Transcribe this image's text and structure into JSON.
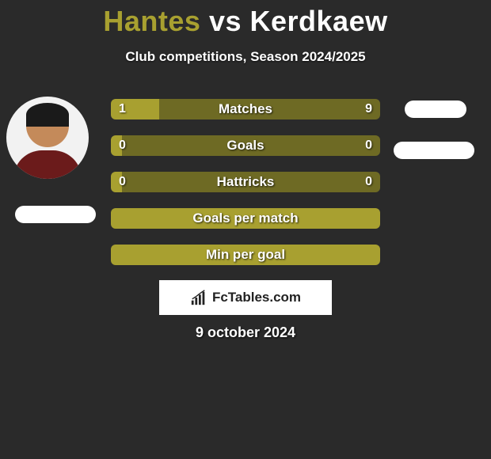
{
  "header": {
    "player1": "Hantes",
    "vs": "vs",
    "player2": "Kerdkaew",
    "p1_color": "#a8a030",
    "vs_color": "#ffffff",
    "p2_color": "#ffffff"
  },
  "subtitle": "Club competitions, Season 2024/2025",
  "colors": {
    "background": "#2a2a2a",
    "left_seg": "#a8a030",
    "right_seg": "#6e6a24",
    "full_bar": "#a8a030"
  },
  "bars": [
    {
      "label": "Matches",
      "left_val": "1",
      "right_val": "9",
      "left_pct": 18,
      "right_pct": 82,
      "split": true
    },
    {
      "label": "Goals",
      "left_val": "0",
      "right_val": "0",
      "left_pct": 4,
      "right_pct": 96,
      "split": true
    },
    {
      "label": "Hattricks",
      "left_val": "0",
      "right_val": "0",
      "left_pct": 4,
      "right_pct": 96,
      "split": true
    },
    {
      "label": "Goals per match",
      "left_val": "",
      "right_val": "",
      "left_pct": 100,
      "right_pct": 0,
      "split": false
    },
    {
      "label": "Min per goal",
      "left_val": "",
      "right_val": "",
      "left_pct": 100,
      "right_pct": 0,
      "split": false
    }
  ],
  "logo_text": "FcTables.com",
  "date": "9 october 2024"
}
